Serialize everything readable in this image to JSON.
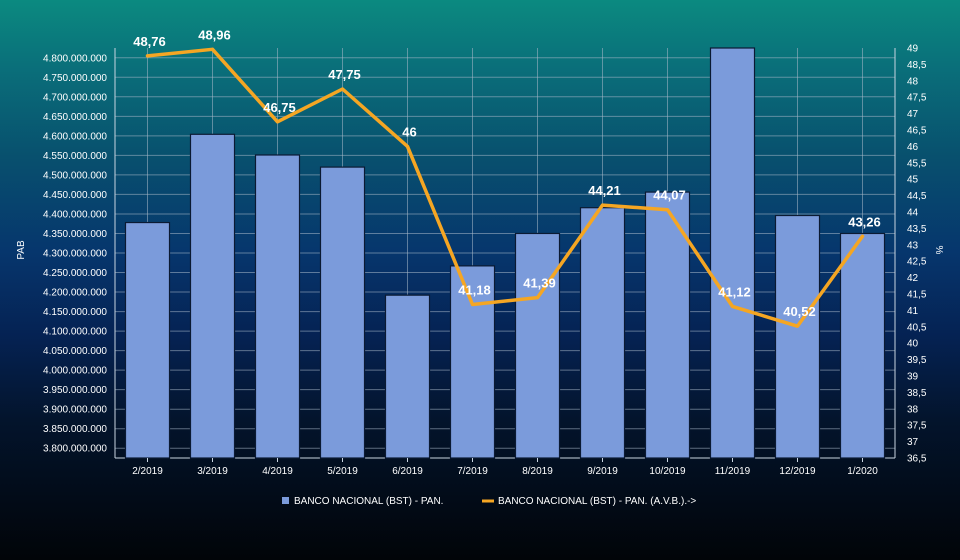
{
  "chart_data": {
    "type": "bar",
    "categories": [
      "2/2019",
      "3/2019",
      "4/2019",
      "5/2019",
      "6/2019",
      "7/2019",
      "8/2019",
      "9/2019",
      "10/2019",
      "11/2019",
      "12/2019",
      "1/2020"
    ],
    "series": [
      {
        "name": "BANCO NACIONAL (BST) - PAN.",
        "type": "bar",
        "axis": "left",
        "color": "#7b9bdb",
        "values": [
          4378000000,
          4604000000,
          4551000000,
          4520000000,
          4192000000,
          4267000000,
          4350000000,
          4416000000,
          4456000000,
          4825000000,
          4396000000,
          4350000000
        ]
      },
      {
        "name": "BANCO NACIONAL (BST) - PAN. (A.V.B.).->",
        "type": "line",
        "axis": "right",
        "color": "#f5a623",
        "values": [
          48.76,
          48.96,
          46.75,
          47.75,
          46,
          41.18,
          41.39,
          44.21,
          44.07,
          41.12,
          40.52,
          43.26
        ],
        "labels": [
          "48,76",
          "48,96",
          "46,75",
          "47,75",
          "46",
          "41,18",
          "41,39",
          "44,21",
          "44,07",
          "41,12",
          "40,52",
          "43,26"
        ]
      }
    ],
    "y_left": {
      "label": "PAB",
      "min": 3775000000,
      "max": 4825000000,
      "ticks": [
        3800000000,
        3850000000,
        3900000000,
        3950000000,
        4000000000,
        4050000000,
        4100000000,
        4150000000,
        4200000000,
        4250000000,
        4300000000,
        4350000000,
        4400000000,
        4450000000,
        4500000000,
        4550000000,
        4600000000,
        4650000000,
        4700000000,
        4750000000,
        4800000000
      ],
      "tick_labels": [
        "3.800.000.000",
        "3.850.000.000",
        "3.900.000.000",
        "3.950.000.000",
        "4.000.000.000",
        "4.050.000.000",
        "4.100.000.000",
        "4.150.000.000",
        "4.200.000.000",
        "4.250.000.000",
        "4.300.000.000",
        "4.350.000.000",
        "4.400.000.000",
        "4.450.000.000",
        "4.500.000.000",
        "4.550.000.000",
        "4.600.000.000",
        "4.650.000.000",
        "4.700.000.000",
        "4.750.000.000",
        "4.800.000.000"
      ]
    },
    "y_right": {
      "label": "%",
      "min": 36.5,
      "max": 49,
      "ticks": [
        36.5,
        37,
        37.5,
        38,
        38.5,
        39,
        39.5,
        40,
        40.5,
        41,
        41.5,
        42,
        42.5,
        43,
        43.5,
        44,
        44.5,
        45,
        45.5,
        46,
        46.5,
        47,
        47.5,
        48,
        48.5,
        49
      ],
      "tick_labels": [
        "36,5",
        "37",
        "37,5",
        "38",
        "38,5",
        "39",
        "39,5",
        "40",
        "40,5",
        "41",
        "41,5",
        "42",
        "42,5",
        "43",
        "43,5",
        "44",
        "44,5",
        "45",
        "45,5",
        "46",
        "46,5",
        "47",
        "47,5",
        "48",
        "48,5",
        "49"
      ]
    },
    "grid": true,
    "legend": {
      "position": "bottom",
      "items": [
        "BANCO NACIONAL (BST) - PAN.",
        "BANCO NACIONAL (BST) - PAN. (A.V.B.).->"
      ]
    }
  }
}
